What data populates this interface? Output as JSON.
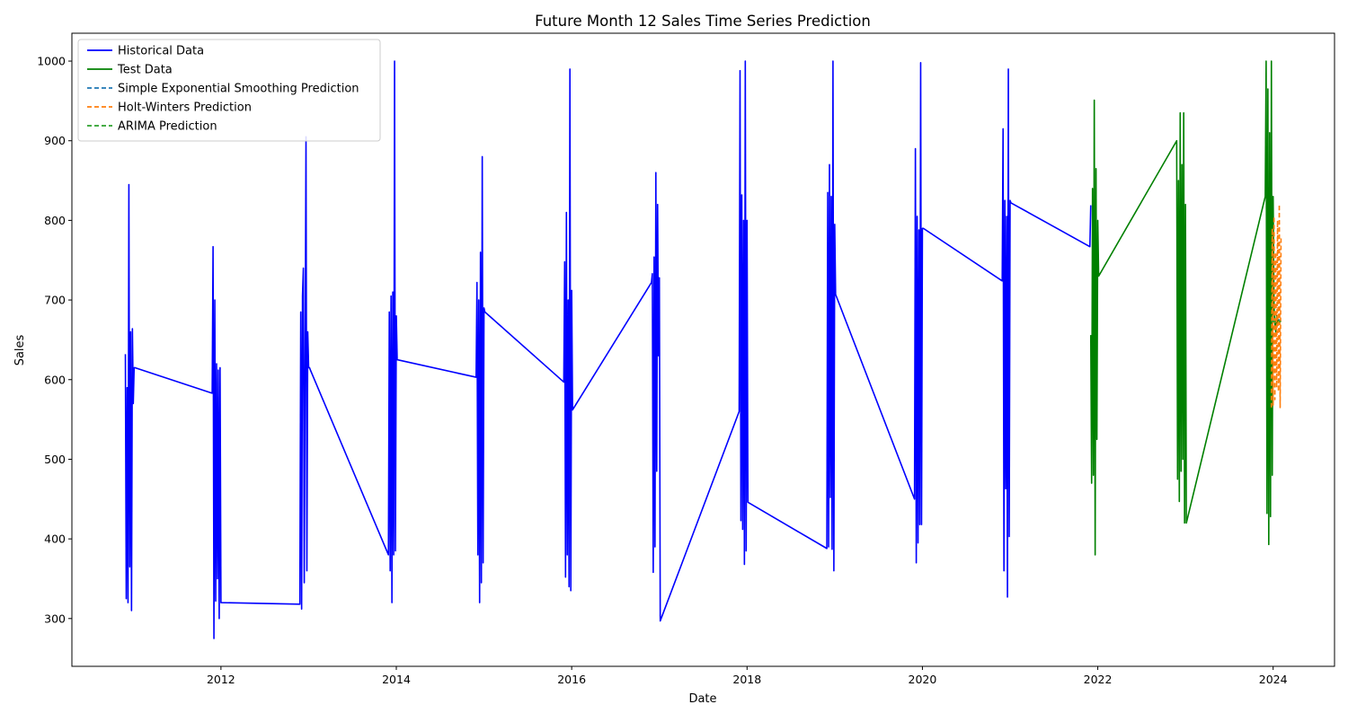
{
  "chart_data": {
    "type": "line",
    "title": "Future Month 12 Sales Time Series Prediction",
    "xlabel": "Date",
    "ylabel": "Sales",
    "xlim": [
      2010.3,
      2024.7
    ],
    "ylim": [
      240,
      1035
    ],
    "x_ticks": [
      2012,
      2014,
      2016,
      2018,
      2020,
      2022,
      2024
    ],
    "y_ticks": [
      300,
      400,
      500,
      600,
      700,
      800,
      900,
      1000
    ],
    "grid": false,
    "legend_position": "top-left",
    "series": [
      {
        "name": "Historical Data",
        "color": "#0000ff",
        "style": "solid",
        "x": [
          2010.91,
          2010.92,
          2010.93,
          2010.94,
          2010.95,
          2010.96,
          2010.97,
          2010.98,
          2010.99,
          2011.0,
          2011.01,
          2011.02,
          2011.9,
          2011.91,
          2011.92,
          2011.93,
          2011.94,
          2011.95,
          2011.96,
          2011.97,
          2011.98,
          2011.99,
          2012.0,
          2012.9,
          2012.91,
          2012.92,
          2012.93,
          2012.94,
          2012.95,
          2012.96,
          2012.97,
          2012.98,
          2012.99,
          2013.0,
          2013.01,
          2013.02,
          2013.91,
          2013.92,
          2013.93,
          2013.94,
          2013.95,
          2013.96,
          2013.97,
          2013.98,
          2013.99,
          2014.0,
          2014.01,
          2014.91,
          2014.92,
          2014.93,
          2014.94,
          2014.95,
          2014.96,
          2014.97,
          2014.98,
          2014.99,
          2015.0,
          2015.01,
          2015.91,
          2015.92,
          2015.93,
          2015.94,
          2015.95,
          2015.96,
          2015.97,
          2015.98,
          2015.99,
          2016.0,
          2016.01,
          2016.91,
          2016.92,
          2016.93,
          2016.94,
          2016.95,
          2016.96,
          2016.97,
          2016.98,
          2016.99,
          2017.0,
          2017.01,
          2017.91,
          2017.92,
          2017.93,
          2017.94,
          2017.95,
          2017.96,
          2017.97,
          2017.98,
          2017.99,
          2018.0,
          2018.01,
          2018.91,
          2018.92,
          2018.93,
          2018.94,
          2018.95,
          2018.96,
          2018.97,
          2018.98,
          2018.99,
          2019.0,
          2019.01,
          2019.91,
          2019.92,
          2019.93,
          2019.94,
          2019.95,
          2019.96,
          2019.97,
          2019.98,
          2019.99,
          2020.0,
          2020.01,
          2020.91,
          2020.92,
          2020.93,
          2020.94,
          2020.95,
          2020.96,
          2020.97,
          2020.98,
          2020.99,
          2021.0,
          2021.01,
          2021.91,
          2021.92
        ],
        "values": [
          632,
          325,
          590,
          320,
          845,
          365,
          660,
          310,
          664,
          570,
          615,
          615,
          583,
          767,
          275,
          700,
          322,
          620,
          350,
          612,
          300,
          615,
          320,
          318,
          685,
          312,
          705,
          740,
          345,
          620,
          905,
          360,
          660,
          615,
          615,
          612,
          380,
          685,
          360,
          705,
          320,
          710,
          380,
          1000,
          385,
          680,
          625,
          603,
          722,
          380,
          700,
          320,
          760,
          345,
          880,
          370,
          690,
          685,
          597,
          748,
          352,
          810,
          380,
          700,
          340,
          990,
          335,
          712,
          562,
          722,
          733,
          358,
          754,
          390,
          860,
          485,
          820,
          630,
          728,
          297,
          560,
          988,
          423,
          832,
          412,
          800,
          368,
          1000,
          385,
          800,
          446,
          388,
          835,
          390,
          870,
          452,
          830,
          387,
          1000,
          360,
          795,
          707,
          450,
          890,
          370,
          805,
          395,
          788,
          418,
          998,
          418,
          790,
          790,
          724,
          915,
          360,
          825,
          463,
          805,
          327,
          990,
          403,
          825,
          822,
          767,
          819
        ]
      },
      {
        "name": "Test Data",
        "color": "#008000",
        "style": "solid",
        "x": [
          2021.92,
          2021.93,
          2021.94,
          2021.95,
          2021.96,
          2021.97,
          2021.98,
          2021.99,
          2022.0,
          2022.01,
          2022.9,
          2022.91,
          2022.92,
          2022.93,
          2022.94,
          2022.95,
          2022.96,
          2022.97,
          2022.98,
          2022.99,
          2023.0,
          2023.01,
          2023.91,
          2023.92,
          2023.93,
          2023.94,
          2023.95,
          2023.96,
          2023.97,
          2023.98,
          2023.99,
          2024.0,
          2024.01,
          2024.02,
          2024.03,
          2024.04,
          2024.05,
          2024.06
        ],
        "values": [
          656,
          470,
          840,
          480,
          951,
          380,
          865,
          525,
          800,
          730,
          900,
          475,
          850,
          447,
          935,
          485,
          870,
          500,
          935,
          420,
          820,
          420,
          830,
          1000,
          432,
          965,
          393,
          910,
          428,
          1000,
          480,
          830,
          690,
          670,
          660,
          680,
          668,
          676
        ]
      },
      {
        "name": "Simple Exponential Smoothing Prediction",
        "color": "#1f77b4",
        "style": "dashed",
        "x": [
          2023.98,
          2024.09
        ],
        "values": [
          675,
          675
        ]
      },
      {
        "name": "Holt-Winters Prediction",
        "color": "#ff7f0e",
        "style": "dashed",
        "x": [
          2023.98,
          2023.99,
          2024.0,
          2024.01,
          2024.02,
          2024.03,
          2024.04,
          2024.05,
          2024.06,
          2024.07,
          2024.08,
          2024.09
        ],
        "values": [
          565,
          790,
          568,
          805,
          575,
          760,
          590,
          800,
          585,
          820,
          565,
          780
        ]
      },
      {
        "name": "ARIMA Prediction",
        "color": "#2ca02c",
        "style": "dashed",
        "x": [
          2023.98,
          2024.09
        ],
        "values": [
          673,
          673
        ]
      }
    ]
  }
}
